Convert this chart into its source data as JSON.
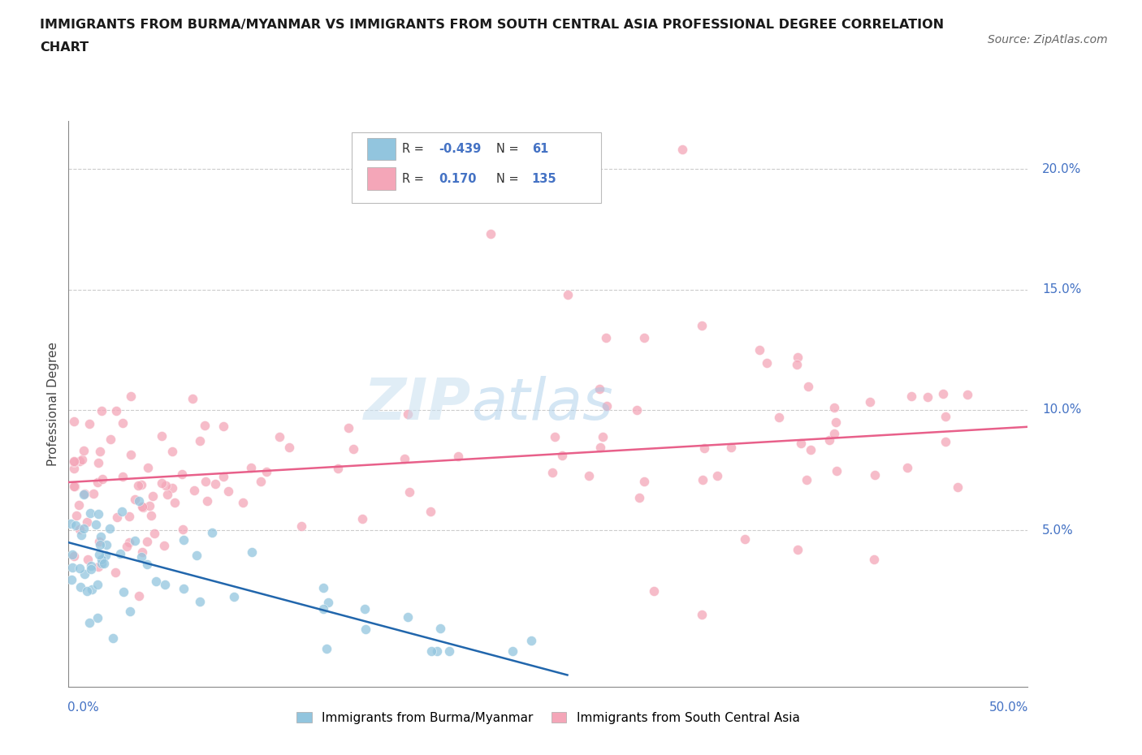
{
  "title_line1": "IMMIGRANTS FROM BURMA/MYANMAR VS IMMIGRANTS FROM SOUTH CENTRAL ASIA PROFESSIONAL DEGREE CORRELATION",
  "title_line2": "CHART",
  "source": "Source: ZipAtlas.com",
  "ylabel": "Professional Degree",
  "ytick_labels": [
    "5.0%",
    "10.0%",
    "15.0%",
    "20.0%"
  ],
  "ytick_values": [
    5.0,
    10.0,
    15.0,
    20.0
  ],
  "xlim": [
    0.0,
    50.0
  ],
  "ylim": [
    -1.5,
    22.0
  ],
  "color_blue": "#92c5de",
  "color_pink": "#f4a6b8",
  "color_line_blue": "#2166ac",
  "color_line_pink": "#e8608a",
  "watermark_zip": "ZIP",
  "watermark_atlas": "atlas",
  "legend_label1": "Immigrants from Burma/Myanmar",
  "legend_label2": "Immigrants from South Central Asia",
  "blue_line_x0": 0.0,
  "blue_line_x1": 26.0,
  "blue_line_y0": 4.5,
  "blue_line_y1": -1.0,
  "pink_line_x0": 0.0,
  "pink_line_x1": 50.0,
  "pink_line_y0": 7.0,
  "pink_line_y1": 9.3
}
